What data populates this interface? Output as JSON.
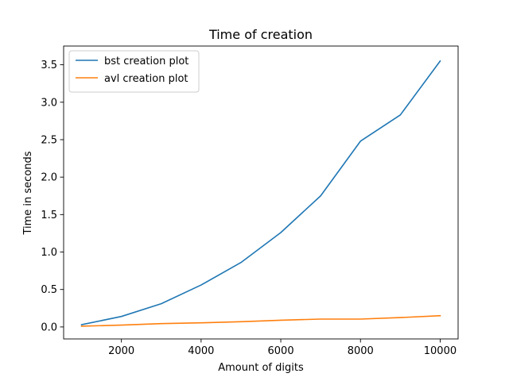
{
  "chart_data": {
    "type": "line",
    "title": "Time of creation",
    "xlabel": "Amount of digits",
    "ylabel": "Time in seconds",
    "x": [
      1000,
      2000,
      3000,
      4000,
      5000,
      6000,
      7000,
      8000,
      9000,
      10000
    ],
    "series": [
      {
        "name": "bst creation plot",
        "color": "#1f77b4",
        "values": [
          0.03,
          0.14,
          0.31,
          0.56,
          0.86,
          1.26,
          1.75,
          2.48,
          2.83,
          3.55
        ]
      },
      {
        "name": "avl creation plot",
        "color": "#ff7f0e",
        "values": [
          0.01,
          0.025,
          0.045,
          0.055,
          0.07,
          0.09,
          0.105,
          0.105,
          0.125,
          0.15
        ]
      }
    ],
    "xlim": [
      550,
      10450
    ],
    "ylim": [
      -0.16,
      3.75
    ],
    "xticks": [
      2000,
      4000,
      6000,
      8000,
      10000
    ],
    "xtick_labels": [
      "2000",
      "4000",
      "6000",
      "8000",
      "10000"
    ],
    "yticks": [
      0.0,
      0.5,
      1.0,
      1.5,
      2.0,
      2.5,
      3.0,
      3.5
    ],
    "ytick_labels": [
      "0.0",
      "0.5",
      "1.0",
      "1.5",
      "2.0",
      "2.5",
      "3.0",
      "3.5"
    ],
    "grid": false,
    "legend_position": "upper-left"
  }
}
